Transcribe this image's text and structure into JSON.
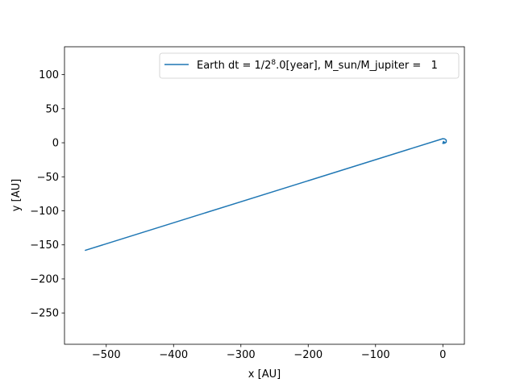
{
  "chart_data": {
    "type": "line",
    "title": "",
    "xlabel": "x [AU]",
    "ylabel": "y [AU]",
    "xlim": [
      -562,
      32
    ],
    "ylim": [
      -296,
      141
    ],
    "xticks": [
      -500,
      -400,
      -300,
      -200,
      -100,
      0
    ],
    "yticks": [
      100,
      50,
      0,
      -50,
      -100,
      -150,
      -200,
      -250
    ],
    "legend": {
      "placement": "top-right",
      "prefix": "Earth dt = 1/2",
      "exponent": "8",
      "suffix": ".0[year], M_sun/M_jupiter =   1"
    },
    "grid": false,
    "series": [
      {
        "name": "Earth dt = 1/2^8.0[year], M_sun/M_jupiter =   1",
        "color": "#1f77b4",
        "x": [
          -531,
          0,
          3,
          5,
          5,
          3,
          0,
          1,
          2.5,
          0
        ],
        "y": [
          -158,
          6,
          5.5,
          4,
          1,
          -0.5,
          -1,
          2,
          0.5,
          -0.5
        ]
      }
    ]
  }
}
